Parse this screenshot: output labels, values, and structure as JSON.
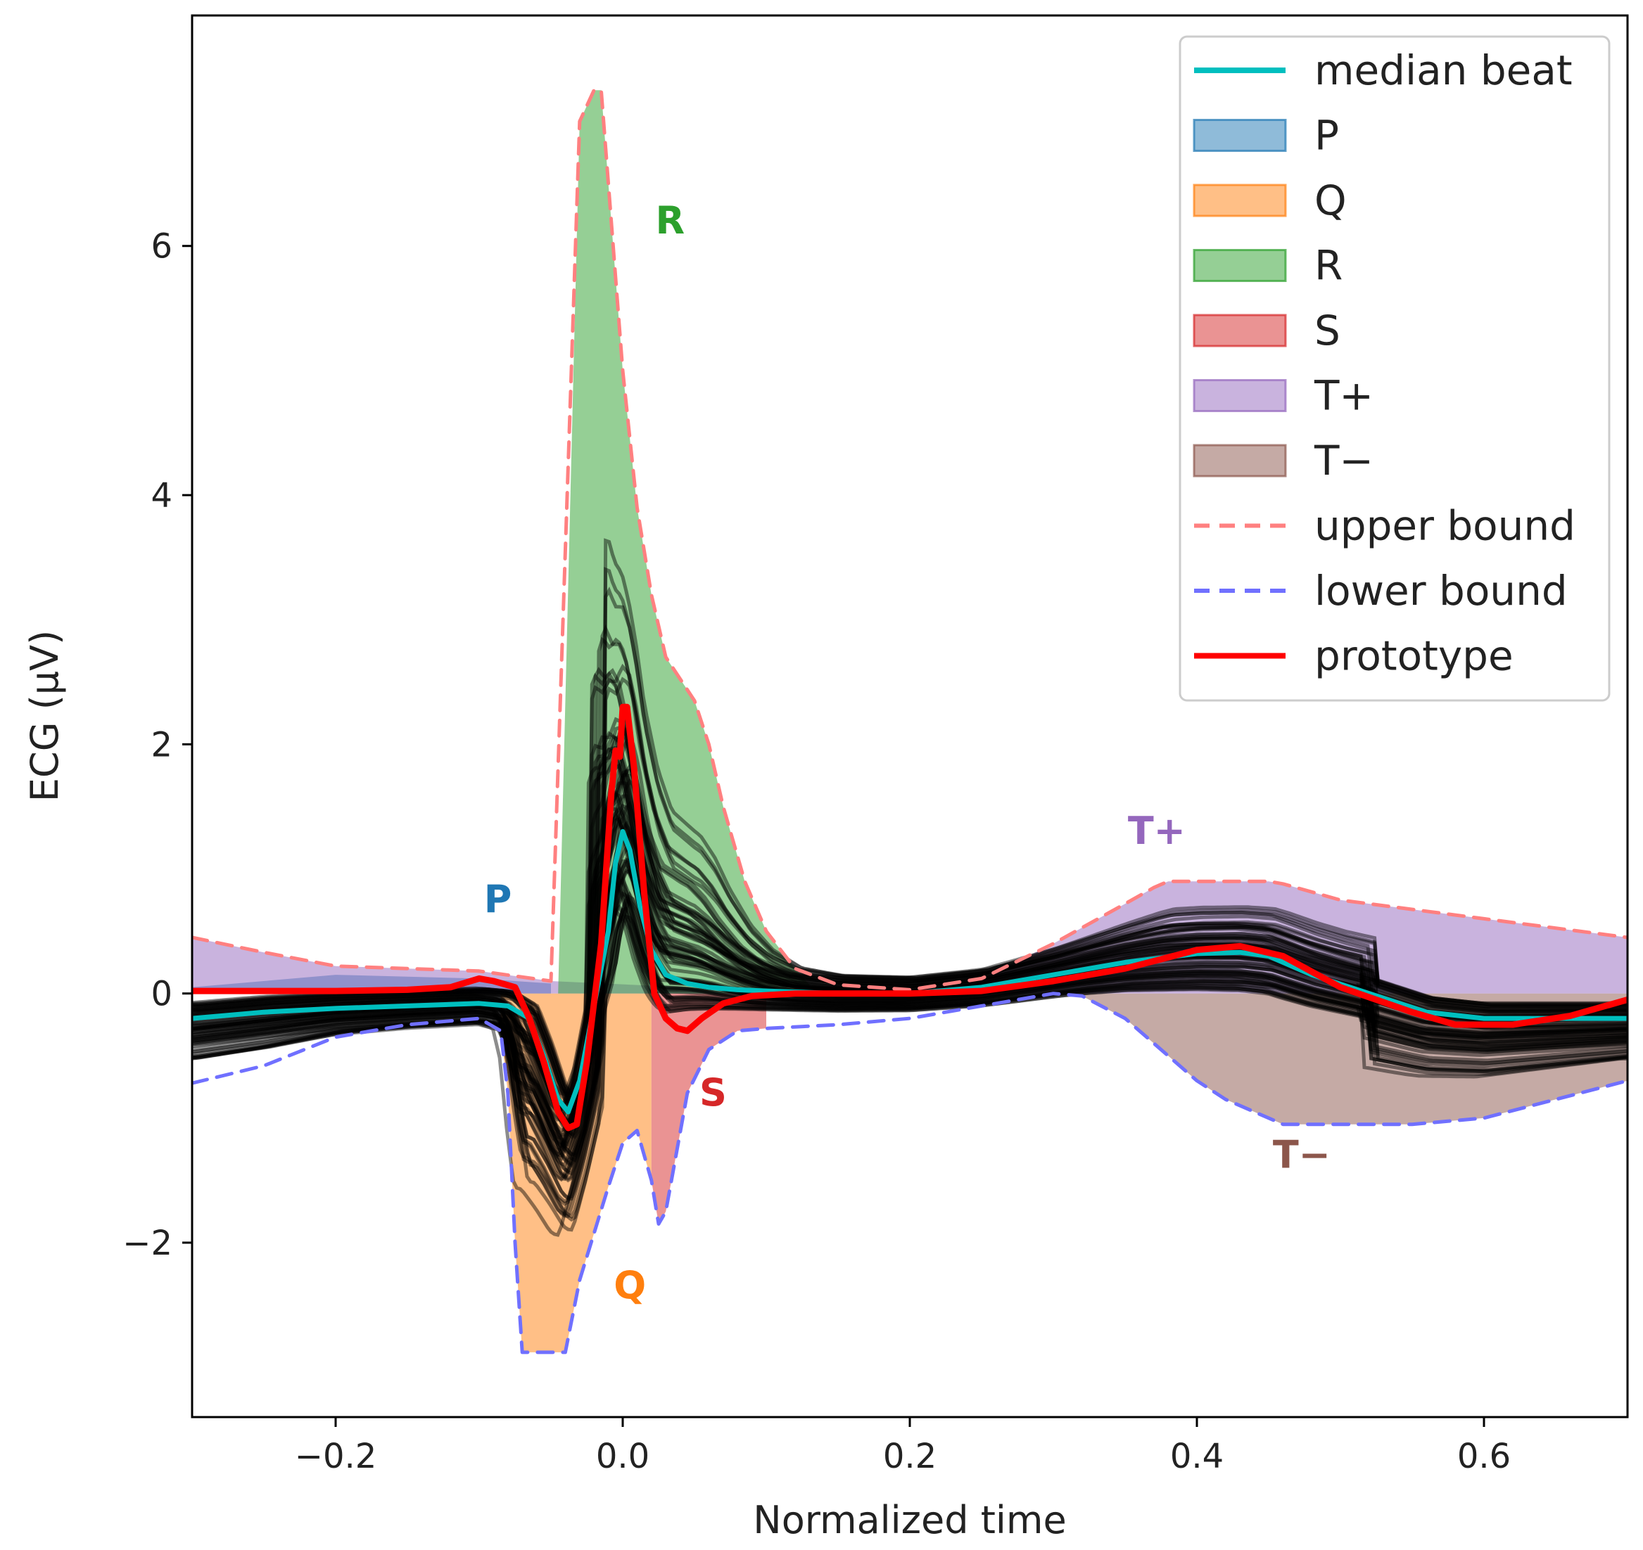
{
  "chart_data": {
    "type": "line",
    "title": "",
    "xlabel": "Normalized time",
    "ylabel": "ECG (μV)",
    "xlim": [
      -0.3,
      0.7
    ],
    "ylim": [
      -3.4,
      7.85
    ],
    "x_ticks": [
      -0.2,
      0.0,
      0.2,
      0.4,
      0.6
    ],
    "x_tick_labels": [
      "−0.2",
      "0.0",
      "0.2",
      "0.4",
      "0.6"
    ],
    "y_ticks": [
      -2,
      0,
      2,
      4,
      6
    ],
    "y_tick_labels": [
      "−2",
      "0",
      "2",
      "4",
      "6"
    ],
    "grid": false,
    "legend_position": "top-right",
    "legend": [
      {
        "key": "median",
        "label": "median beat",
        "kind": "line",
        "color": "#00bfbf"
      },
      {
        "key": "P",
        "label": "P",
        "kind": "patch",
        "color": "#1f77b4"
      },
      {
        "key": "Q",
        "label": "Q",
        "kind": "patch",
        "color": "#ff7f0e"
      },
      {
        "key": "R",
        "label": "R",
        "kind": "patch",
        "color": "#2ca02c"
      },
      {
        "key": "S",
        "label": "S",
        "kind": "patch",
        "color": "#d62728"
      },
      {
        "key": "Tpos",
        "label": "T+",
        "kind": "patch",
        "color": "#9467bd"
      },
      {
        "key": "Tneg",
        "label": "T−",
        "kind": "patch",
        "color": "#8c564b"
      },
      {
        "key": "upper",
        "label": "upper bound",
        "kind": "dashed",
        "color": "#ff8080"
      },
      {
        "key": "lower",
        "label": "lower bound",
        "kind": "dashed",
        "color": "#7070ff"
      },
      {
        "key": "prototype",
        "label": "prototype",
        "kind": "line",
        "color": "#ff0000"
      }
    ],
    "wave_annotations": [
      {
        "text": "P",
        "x": -0.087,
        "y": 0.65,
        "color": "#1f77b4"
      },
      {
        "text": "Q",
        "x": 0.005,
        "y": -2.45,
        "color": "#ff7f0e"
      },
      {
        "text": "R",
        "x": 0.033,
        "y": 6.1,
        "color": "#2ca02c"
      },
      {
        "text": "S",
        "x": 0.063,
        "y": -0.9,
        "color": "#d62728"
      },
      {
        "text": "T+",
        "x": 0.372,
        "y": 1.2,
        "color": "#9467bd"
      },
      {
        "text": "T−",
        "x": 0.473,
        "y": -1.4,
        "color": "#8c564b"
      }
    ],
    "series": [
      {
        "name": "upper bound",
        "x": [
          -0.3,
          -0.25,
          -0.2,
          -0.15,
          -0.1,
          -0.05,
          -0.03,
          -0.02,
          -0.015,
          0.0,
          0.01,
          0.02,
          0.03,
          0.05,
          0.06,
          0.07,
          0.085,
          0.1,
          0.12,
          0.15,
          0.2,
          0.25,
          0.3,
          0.35,
          0.37,
          0.38,
          0.4,
          0.45,
          0.46,
          0.5,
          0.6,
          0.7
        ],
        "y": [
          0.45,
          0.33,
          0.22,
          0.2,
          0.18,
          0.1,
          7.0,
          7.25,
          7.25,
          5.0,
          3.9,
          3.2,
          2.7,
          2.35,
          2.0,
          1.5,
          0.9,
          0.5,
          0.2,
          0.07,
          0.03,
          0.12,
          0.4,
          0.72,
          0.85,
          0.9,
          0.9,
          0.9,
          0.88,
          0.75,
          0.6,
          0.45
        ]
      },
      {
        "name": "lower bound",
        "x": [
          -0.3,
          -0.25,
          -0.2,
          -0.15,
          -0.1,
          -0.085,
          -0.08,
          -0.075,
          -0.07,
          -0.04,
          -0.03,
          -0.01,
          0.0,
          0.01,
          0.02,
          0.025,
          0.03,
          0.045,
          0.06,
          0.08,
          0.1,
          0.15,
          0.2,
          0.25,
          0.3,
          0.32,
          0.35,
          0.4,
          0.42,
          0.45,
          0.46,
          0.5,
          0.55,
          0.6,
          0.65,
          0.7
        ],
        "y": [
          -0.72,
          -0.58,
          -0.35,
          -0.25,
          -0.2,
          -0.3,
          -0.8,
          -2.0,
          -2.88,
          -2.88,
          -2.3,
          -1.55,
          -1.2,
          -1.1,
          -1.5,
          -1.85,
          -1.75,
          -0.8,
          -0.45,
          -0.3,
          -0.28,
          -0.25,
          -0.2,
          -0.1,
          0.0,
          -0.02,
          -0.2,
          -0.7,
          -0.85,
          -1.0,
          -1.05,
          -1.05,
          -1.05,
          -1.0,
          -0.85,
          -0.7
        ]
      },
      {
        "name": "median beat",
        "x": [
          -0.3,
          -0.25,
          -0.2,
          -0.15,
          -0.1,
          -0.08,
          -0.065,
          -0.055,
          -0.045,
          -0.038,
          -0.03,
          -0.02,
          -0.01,
          -0.005,
          0.0,
          0.005,
          0.012,
          0.02,
          0.03,
          0.045,
          0.06,
          0.08,
          0.1,
          0.15,
          0.2,
          0.25,
          0.3,
          0.35,
          0.4,
          0.43,
          0.45,
          0.48,
          0.52,
          0.56,
          0.6,
          0.65,
          0.7
        ],
        "y": [
          -0.2,
          -0.15,
          -0.12,
          -0.1,
          -0.08,
          -0.1,
          -0.2,
          -0.5,
          -0.85,
          -0.95,
          -0.7,
          -0.1,
          0.5,
          1.05,
          1.3,
          1.15,
          0.7,
          0.35,
          0.15,
          0.08,
          0.05,
          0.03,
          0.02,
          0.0,
          0.0,
          0.05,
          0.15,
          0.25,
          0.32,
          0.33,
          0.3,
          0.15,
          0.0,
          -0.15,
          -0.2,
          -0.2,
          -0.2
        ]
      },
      {
        "name": "prototype",
        "x": [
          -0.3,
          -0.25,
          -0.2,
          -0.15,
          -0.12,
          -0.1,
          -0.09,
          -0.075,
          -0.065,
          -0.055,
          -0.045,
          -0.038,
          -0.032,
          -0.025,
          -0.015,
          -0.008,
          -0.005,
          -0.002,
          0.0,
          0.003,
          0.008,
          0.015,
          0.022,
          0.03,
          0.038,
          0.045,
          0.055,
          0.07,
          0.09,
          0.12,
          0.2,
          0.25,
          0.3,
          0.35,
          0.4,
          0.43,
          0.46,
          0.5,
          0.55,
          0.58,
          0.62,
          0.66,
          0.7
        ],
        "y": [
          0.02,
          0.02,
          0.02,
          0.03,
          0.05,
          0.12,
          0.1,
          0.05,
          -0.2,
          -0.55,
          -0.95,
          -1.08,
          -1.05,
          -0.55,
          0.4,
          1.6,
          1.95,
          1.9,
          2.3,
          2.3,
          1.8,
          0.8,
          0.0,
          -0.2,
          -0.28,
          -0.3,
          -0.2,
          -0.08,
          -0.02,
          0.0,
          0.0,
          0.02,
          0.1,
          0.2,
          0.35,
          0.38,
          0.3,
          0.05,
          -0.15,
          -0.25,
          -0.25,
          -0.18,
          -0.05
        ]
      }
    ],
    "regions": [
      {
        "key": "P",
        "x": [
          -0.3,
          -0.2,
          -0.1,
          -0.05
        ],
        "upper": [
          0.05,
          0.15,
          0.12,
          0.08
        ],
        "lower": [
          0.0,
          0.0,
          0.0,
          0.0
        ]
      },
      {
        "key": "Tpos",
        "x": [
          -0.3,
          -0.25,
          -0.2,
          -0.15,
          -0.1,
          -0.05,
          0.1,
          0.15,
          0.2,
          0.25,
          0.3,
          0.35,
          0.37,
          0.38,
          0.4,
          0.45,
          0.46,
          0.5,
          0.6,
          0.7
        ],
        "upper": [
          0.45,
          0.33,
          0.22,
          0.2,
          0.18,
          0.1,
          0.02,
          0.07,
          0.03,
          0.12,
          0.4,
          0.72,
          0.85,
          0.9,
          0.9,
          0.9,
          0.88,
          0.75,
          0.6,
          0.45
        ],
        "lower": [
          0,
          0,
          0,
          0,
          0,
          0,
          0,
          0,
          0,
          0,
          0,
          0,
          0,
          0,
          0,
          0,
          0,
          0,
          0,
          0
        ]
      },
      {
        "key": "R",
        "x": [
          -0.045,
          -0.03,
          -0.02,
          -0.015,
          0.0,
          0.01,
          0.02,
          0.03,
          0.05,
          0.06,
          0.07,
          0.085,
          0.1,
          0.12,
          0.13
        ],
        "upper": [
          0.0,
          7.0,
          7.25,
          7.25,
          5.0,
          3.9,
          3.2,
          2.7,
          2.35,
          2.0,
          1.5,
          0.9,
          0.5,
          0.2,
          0.07
        ],
        "lower": [
          0,
          0,
          0,
          0,
          0,
          0,
          0,
          0,
          0,
          0,
          0,
          0,
          0,
          0,
          0
        ]
      },
      {
        "key": "Q",
        "x": [
          -0.085,
          -0.08,
          -0.075,
          -0.07,
          -0.04,
          -0.03,
          -0.01,
          0.0,
          0.01,
          0.02
        ],
        "upper": [
          0,
          0,
          0,
          0,
          0,
          0,
          0,
          0,
          0,
          0
        ],
        "lower": [
          -0.3,
          -0.8,
          -2.0,
          -2.88,
          -2.88,
          -2.3,
          -1.55,
          -1.2,
          -1.1,
          -1.5
        ]
      },
      {
        "key": "S",
        "x": [
          0.02,
          0.025,
          0.03,
          0.045,
          0.06,
          0.08,
          0.1
        ],
        "upper": [
          0,
          0,
          0,
          0,
          0,
          0,
          0
        ],
        "lower": [
          -1.5,
          -1.85,
          -1.75,
          -0.8,
          -0.45,
          -0.3,
          -0.28
        ]
      },
      {
        "key": "Tneg",
        "x": [
          0.3,
          0.32,
          0.35,
          0.4,
          0.42,
          0.45,
          0.46,
          0.5,
          0.55,
          0.6,
          0.65,
          0.7
        ],
        "upper": [
          0,
          0,
          0,
          0,
          0,
          0,
          0,
          0,
          0,
          0,
          0,
          0
        ],
        "lower": [
          0.0,
          -0.02,
          -0.2,
          -0.7,
          -0.85,
          -1.0,
          -1.05,
          -1.05,
          -1.05,
          -1.0,
          -0.85,
          -0.7
        ]
      }
    ]
  }
}
